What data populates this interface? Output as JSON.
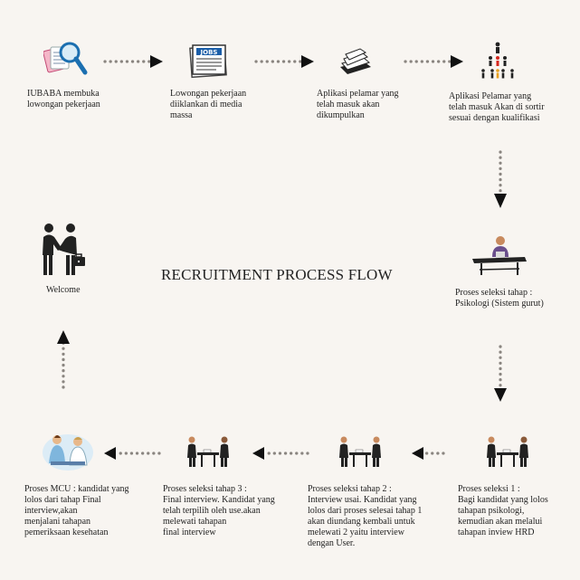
{
  "title": "RECRUITMENT PROCESS FLOW",
  "steps": [
    {
      "icon": "magnifier-document-icon",
      "label": "IUBABA membuka\nlowongan pekerjaan"
    },
    {
      "icon": "jobs-newspaper-icon",
      "label": "Lowongan pekerjaan\ndiiklankan di  media\nmassa"
    },
    {
      "icon": "paper-stack-icon",
      "label": "Aplikasi pelamar yang\ntelah masuk akan\ndikumpulkan"
    },
    {
      "icon": "people-sorting-icon",
      "label": "Aplikasi Pelamar yang\ntelah masuk Akan di sortir\nsesuai dengan kualifikasi"
    },
    {
      "icon": "person-at-desk-icon",
      "label": "Proses seleksi tahap :\nPsikologi (Sistem gurut)"
    },
    {
      "icon": "interview-icon",
      "label": "Proses seleksi 1 :\nBagi kandidat yang lolos\ntahapan psikologi,\nkemudian akan melalui\ntahapan inview HRD"
    },
    {
      "icon": "interview-icon",
      "label": "Proses seleksi tahap 2 :\nInterview usai. Kandidat yang\nlolos dari proses selesai tahap 1\nakan diundang kembali untuk\nmelewati 2 yaitu interview\ndengan User."
    },
    {
      "icon": "interview-icon",
      "label": "Proses seleksi tahap 3 :\nFinal interview. Kandidat yang\ntelah terpilih oleh use.akan\nmelewati tahapan\nfinal interview"
    },
    {
      "icon": "medical-checkup-icon",
      "label": "Proses MCU : kandidat yang\nlolos dari tahap Final\ninterview,akan\nmenjalani tahapan\npemeriksaan kesehatan"
    },
    {
      "icon": "handshake-icon",
      "label": "Welcome"
    }
  ]
}
